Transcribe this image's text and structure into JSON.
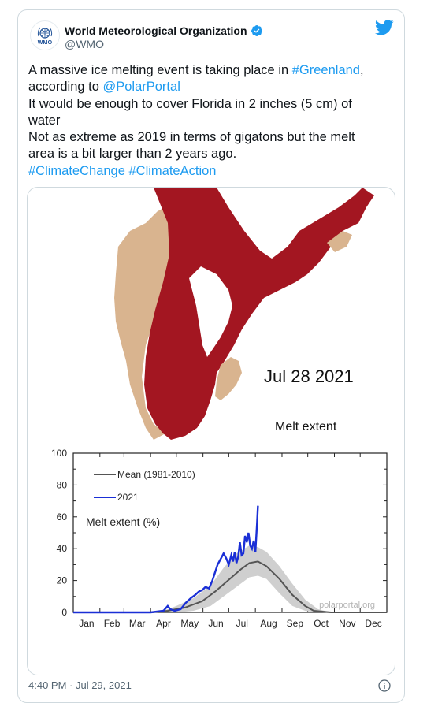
{
  "tweet": {
    "author_name": "World Meteorological Organization",
    "author_handle": "@WMO",
    "avatar_label": "WMO",
    "text_lines": [
      [
        {
          "t": "A massive ice melting event is taking place in ",
          "link": false
        },
        {
          "t": "#Greenland",
          "link": true
        },
        {
          "t": ",",
          "link": false
        }
      ],
      [
        {
          "t": "according to ",
          "link": false
        },
        {
          "t": "@PolarPortal",
          "link": true
        }
      ],
      [
        {
          "t": "It would be enough to cover Florida in 2 inches (5 cm) of",
          "link": false
        }
      ],
      [
        {
          "t": "water",
          "link": false
        }
      ],
      [
        {
          "t": "Not as extreme as 2019 in terms of gigatons but the melt",
          "link": false
        }
      ],
      [
        {
          "t": "area is a bit larger than 2 years ago.",
          "link": false
        }
      ],
      [
        {
          "t": "#ClimateChange",
          "link": true
        },
        {
          "t": " ",
          "link": false
        },
        {
          "t": "#ClimateAction",
          "link": true
        }
      ]
    ],
    "timestamp": "4:40 PM · Jul 29, 2021",
    "colors": {
      "link": "#1d9bf0",
      "text": "#0f1419",
      "muted": "#536471",
      "verified": "#1d9bf0",
      "melt": "#a31621",
      "land": "#d9b48f"
    }
  },
  "map": {
    "date_label": "Jul 28 2021",
    "subtitle": "Melt extent"
  },
  "chart_data": {
    "type": "line",
    "ylabel": "Melt extent (%)",
    "ylim": [
      0,
      100
    ],
    "yticks": [
      "0",
      "20",
      "40",
      "60",
      "80",
      "100"
    ],
    "months": [
      "Jan",
      "Feb",
      "Mar",
      "Apr",
      "May",
      "Jun",
      "Jul",
      "Aug",
      "Sep",
      "Oct",
      "Nov",
      "Dec"
    ],
    "xlim": [
      0,
      365
    ],
    "watermark": "polarportal.org",
    "series": [
      {
        "name": "Mean (1981-2010)",
        "color": "#555555",
        "x": [
          0,
          90,
          110,
          130,
          150,
          165,
          180,
          195,
          205,
          215,
          225,
          240,
          255,
          270,
          280,
          300,
          365
        ],
        "y": [
          0,
          0,
          1,
          3,
          7,
          13,
          20,
          27,
          31,
          32,
          29,
          21,
          11,
          4,
          1,
          0,
          0
        ]
      },
      {
        "name": "2021",
        "color": "#1a2fd6",
        "x": [
          0,
          90,
          105,
          110,
          113,
          118,
          125,
          131,
          137,
          142,
          146,
          150,
          154,
          158,
          162,
          165,
          168,
          172,
          175,
          178,
          181,
          184,
          186,
          188,
          190,
          192,
          194,
          196,
          198,
          200,
          202,
          204,
          206,
          208,
          210,
          212,
          214,
          215
        ],
        "y": [
          0,
          0,
          1,
          4,
          2,
          1,
          2,
          6,
          9,
          11,
          13,
          14,
          16,
          15,
          20,
          25,
          30,
          34,
          37,
          34,
          30,
          36,
          32,
          38,
          31,
          35,
          44,
          36,
          37,
          48,
          44,
          50,
          42,
          40,
          45,
          38,
          56,
          67
        ]
      }
    ],
    "band": {
      "x": [
        100,
        120,
        140,
        160,
        175,
        190,
        205,
        215,
        225,
        240,
        255,
        270,
        285,
        300
      ],
      "lo": [
        0,
        0,
        1,
        4,
        10,
        16,
        22,
        23,
        21,
        12,
        4,
        1,
        0,
        0
      ],
      "hi": [
        0,
        4,
        9,
        17,
        28,
        37,
        42,
        41,
        38,
        29,
        18,
        8,
        2,
        0
      ]
    }
  }
}
